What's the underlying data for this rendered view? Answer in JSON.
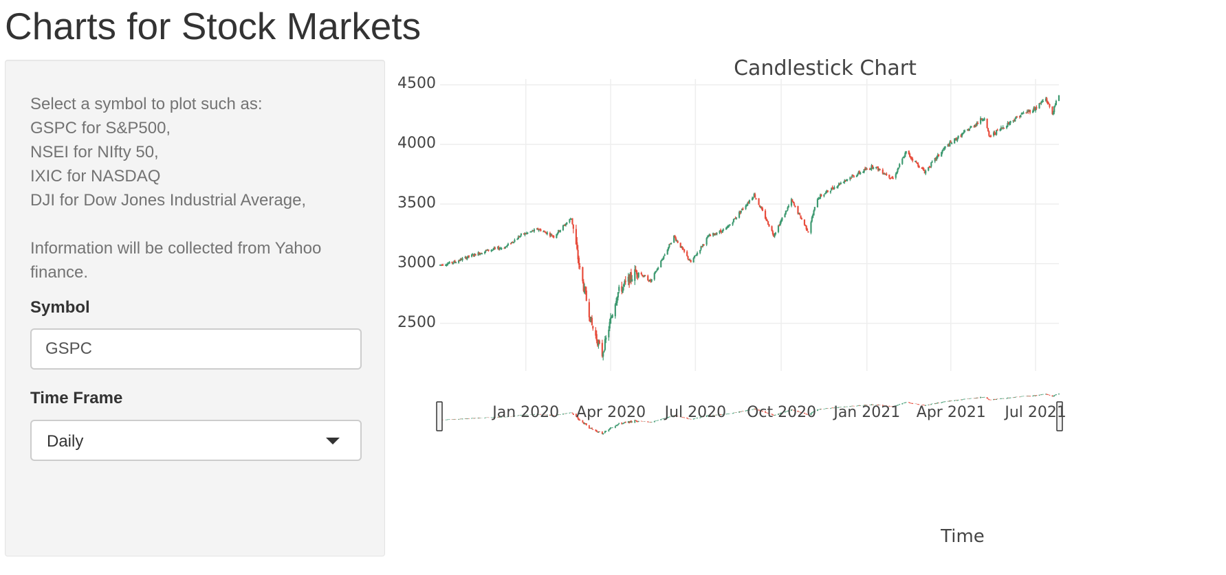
{
  "page": {
    "title": "Charts for Stock Markets"
  },
  "sidebar": {
    "help_lines": [
      "Select a symbol to plot such as:",
      "GSPC for S&P500,",
      "NSEI for NIfty 50,",
      "IXIC for NASDAQ",
      "DJI for Dow Jones Industrial Average,"
    ],
    "info_line_1": "Information will be collected from Yahoo",
    "info_line_2": "finance.",
    "symbol_label": "Symbol",
    "symbol_value": "GSPC",
    "timeframe_label": "Time Frame",
    "timeframe_value": "Daily"
  },
  "chart_data": {
    "type": "candlestick",
    "title": "Candlestick Chart",
    "xlabel": "Time",
    "ylabel": "",
    "ylim": [
      2100,
      4520
    ],
    "yticks": [
      2500,
      3000,
      3500,
      4000,
      4500
    ],
    "xticks": [
      "Jan 2020",
      "Apr 2020",
      "Jul 2020",
      "Oct 2020",
      "Jan 2021",
      "Apr 2021",
      "Jul 2021"
    ],
    "x_start": "2019-10-01",
    "x_end": "2021-07-26",
    "grid": true,
    "range_slider": true,
    "colors": {
      "up": "#3d9970",
      "down": "#e74c3c",
      "grid": "#eeeeee"
    },
    "close_path": [
      [
        "2019-10-01",
        2990
      ],
      [
        "2019-10-15",
        3010
      ],
      [
        "2019-11-01",
        3060
      ],
      [
        "2019-11-20",
        3110
      ],
      [
        "2019-12-10",
        3140
      ],
      [
        "2019-12-27",
        3240
      ],
      [
        "2020-01-15",
        3290
      ],
      [
        "2020-01-31",
        3230
      ],
      [
        "2020-02-19",
        3385
      ],
      [
        "2020-02-28",
        2950
      ],
      [
        "2020-03-12",
        2480
      ],
      [
        "2020-03-23",
        2237
      ],
      [
        "2020-04-08",
        2750
      ],
      [
        "2020-04-29",
        2940
      ],
      [
        "2020-05-14",
        2850
      ],
      [
        "2020-06-08",
        3230
      ],
      [
        "2020-06-26",
        3010
      ],
      [
        "2020-07-15",
        3230
      ],
      [
        "2020-08-03",
        3290
      ],
      [
        "2020-09-02",
        3580
      ],
      [
        "2020-09-23",
        3240
      ],
      [
        "2020-10-12",
        3530
      ],
      [
        "2020-10-30",
        3270
      ],
      [
        "2020-11-09",
        3550
      ],
      [
        "2020-12-08",
        3700
      ],
      [
        "2021-01-08",
        3820
      ],
      [
        "2021-01-29",
        3714
      ],
      [
        "2021-02-12",
        3935
      ],
      [
        "2021-03-04",
        3770
      ],
      [
        "2021-03-26",
        3975
      ],
      [
        "2021-05-07",
        4230
      ],
      [
        "2021-05-12",
        4063
      ],
      [
        "2021-06-15",
        4250
      ],
      [
        "2021-06-30",
        4300
      ],
      [
        "2021-07-12",
        4385
      ],
      [
        "2021-07-19",
        4258
      ],
      [
        "2021-07-26",
        4422
      ]
    ]
  }
}
